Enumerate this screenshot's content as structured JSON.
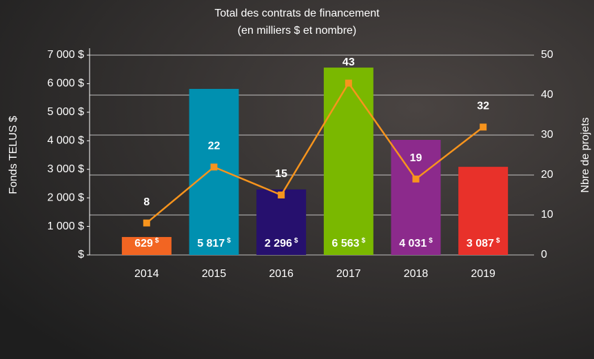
{
  "chart_data": {
    "type": "bar_line",
    "title": [
      "Total des contrats de financement",
      "(en milliers $ et nombre)"
    ],
    "categories": [
      "2014",
      "2015",
      "2016",
      "2017",
      "2018",
      "2019"
    ],
    "series": [
      {
        "name": "Fonds TELUS $",
        "type": "bar",
        "colors": [
          "#f26522",
          "#0090b0",
          "#26106e",
          "#7ab800",
          "#8c2a8c",
          "#e8312a"
        ],
        "values": [
          629,
          5817,
          2296,
          6563,
          4031,
          3087
        ],
        "value_labels": [
          "629",
          "5 817",
          "2 296",
          "6 563",
          "4 031",
          "3 087"
        ],
        "value_label_unit": "$"
      },
      {
        "name": "Nbre de projets",
        "type": "line",
        "axis": "y2",
        "color": "#f7941d",
        "values": [
          8,
          22,
          15,
          43,
          19,
          32
        ]
      }
    ],
    "ylabel": "Fonds TELUS $",
    "y2label": "Nbre de projets",
    "ylim": [
      0,
      7000
    ],
    "yticks": [
      {
        "value": 0,
        "label": "$"
      },
      {
        "value": 1000,
        "label": "1 000 $"
      },
      {
        "value": 2000,
        "label": "2 000 $"
      },
      {
        "value": 3000,
        "label": "3 000 $"
      },
      {
        "value": 4000,
        "label": "4 000 $"
      },
      {
        "value": 5000,
        "label": "5 000 $"
      },
      {
        "value": 6000,
        "label": "6 000 $"
      },
      {
        "value": 7000,
        "label": "7 000 $"
      }
    ],
    "y2lim": [
      0,
      50
    ],
    "y2ticks": [
      0,
      10,
      20,
      30,
      40,
      50
    ],
    "grid": true
  }
}
